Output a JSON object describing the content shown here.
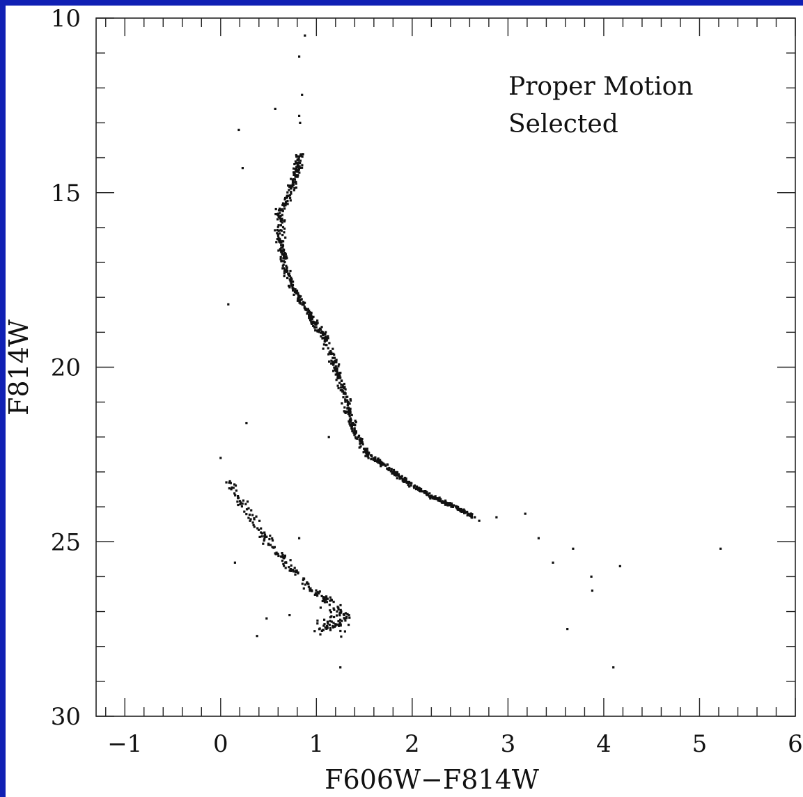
{
  "chart_data": {
    "type": "scatter",
    "xlabel": "F606W−F814W",
    "ylabel": "F814W",
    "xlim": [
      -1.3,
      6.0
    ],
    "ylim": [
      30,
      10
    ],
    "y_inverted": true,
    "x_major_ticks": [
      -1,
      0,
      1,
      2,
      3,
      4,
      5,
      6
    ],
    "x_tick_labels": [
      "−1",
      "0",
      "1",
      "2",
      "3",
      "4",
      "5",
      "6"
    ],
    "y_major_ticks": [
      10,
      15,
      20,
      25,
      30
    ],
    "y_tick_labels": [
      "10",
      "15",
      "20",
      "25",
      "30"
    ],
    "grid": false,
    "legend": "none",
    "annotation_lines": [
      "Proper Motion",
      "Selected"
    ],
    "marker_color": "#111111",
    "sequences": [
      {
        "name": "main_sequence",
        "points": [
          [
            0.82,
            13.9
          ],
          [
            0.8,
            14.3
          ],
          [
            0.75,
            14.8
          ],
          [
            0.68,
            15.2
          ],
          [
            0.62,
            15.6
          ],
          [
            0.62,
            16.0
          ],
          [
            0.63,
            16.5
          ],
          [
            0.66,
            17.0
          ],
          [
            0.72,
            17.5
          ],
          [
            0.82,
            18.0
          ],
          [
            0.92,
            18.5
          ],
          [
            1.05,
            19.0
          ],
          [
            1.14,
            19.5
          ],
          [
            1.2,
            20.0
          ],
          [
            1.26,
            20.5
          ],
          [
            1.32,
            21.0
          ],
          [
            1.35,
            21.5
          ],
          [
            1.42,
            22.0
          ],
          [
            1.55,
            22.5
          ],
          [
            1.75,
            22.9
          ],
          [
            1.95,
            23.3
          ],
          [
            2.2,
            23.7
          ],
          [
            2.45,
            24.0
          ],
          [
            2.65,
            24.3
          ]
        ],
        "count": 820,
        "spread": [
          0.03,
          0.02
        ]
      },
      {
        "name": "white_dwarf_cooling_sequence",
        "points": [
          [
            0.08,
            23.2
          ],
          [
            0.25,
            24.0
          ],
          [
            0.45,
            24.8
          ],
          [
            0.62,
            25.4
          ],
          [
            0.8,
            25.9
          ],
          [
            0.95,
            26.4
          ],
          [
            1.1,
            26.7
          ],
          [
            1.25,
            27.0
          ],
          [
            1.3,
            27.3
          ]
        ],
        "count": 170,
        "spread": [
          0.04,
          0.06
        ]
      },
      {
        "name": "wd_clump",
        "points": [
          [
            1.1,
            27.0
          ],
          [
            1.3,
            27.2
          ],
          [
            1.2,
            27.5
          ],
          [
            1.0,
            27.5
          ],
          [
            1.35,
            27.3
          ]
        ],
        "count": 60,
        "spread": [
          0.1,
          0.18
        ]
      }
    ],
    "isolated_points": [
      [
        0.88,
        10.5
      ],
      [
        0.82,
        11.1
      ],
      [
        0.85,
        12.2
      ],
      [
        0.82,
        12.8
      ],
      [
        0.83,
        13.0
      ],
      [
        0.57,
        12.6
      ],
      [
        0.19,
        13.2
      ],
      [
        0.23,
        14.3
      ],
      [
        0.08,
        18.2
      ],
      [
        0.27,
        21.6
      ],
      [
        0.0,
        22.6
      ],
      [
        0.06,
        23.3
      ],
      [
        0.15,
        25.6
      ],
      [
        0.48,
        27.2
      ],
      [
        0.38,
        27.7
      ],
      [
        0.72,
        27.1
      ],
      [
        0.82,
        24.9
      ],
      [
        1.13,
        22.0
      ],
      [
        1.25,
        28.6
      ],
      [
        2.7,
        24.4
      ],
      [
        2.88,
        24.3
      ],
      [
        3.18,
        24.2
      ],
      [
        3.32,
        24.9
      ],
      [
        3.47,
        25.6
      ],
      [
        3.62,
        27.5
      ],
      [
        3.68,
        25.2
      ],
      [
        3.87,
        26.0
      ],
      [
        3.88,
        26.4
      ],
      [
        4.1,
        28.6
      ],
      [
        4.17,
        25.7
      ],
      [
        5.22,
        25.2
      ]
    ]
  }
}
